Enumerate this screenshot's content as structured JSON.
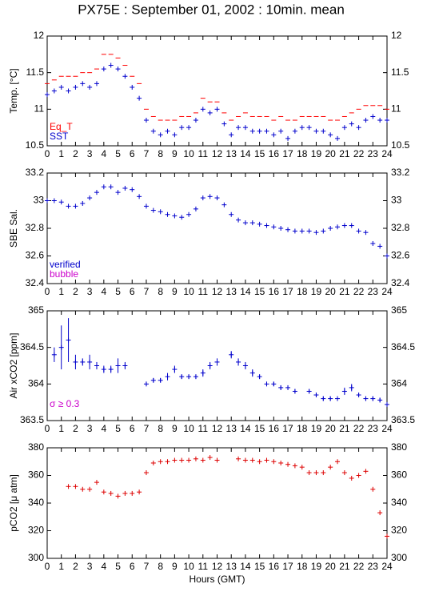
{
  "title": "PX75E : September 01, 2002 : 10min. mean",
  "chart_data": [
    {
      "type": "scatter",
      "ylabel": "Temp. [°C]",
      "xlim": [
        0,
        24
      ],
      "xticks": [
        0,
        1,
        2,
        3,
        4,
        5,
        6,
        7,
        8,
        9,
        10,
        11,
        12,
        13,
        14,
        15,
        16,
        17,
        18,
        19,
        20,
        21,
        22,
        23,
        24
      ],
      "ylim": [
        10.5,
        12
      ],
      "yticks": [
        10.5,
        11,
        11.5,
        12
      ],
      "x": [
        0,
        0.5,
        1,
        1.5,
        2,
        2.5,
        3,
        3.5,
        4,
        4.5,
        5,
        5.5,
        6,
        6.5,
        7,
        7.5,
        8,
        8.5,
        9,
        9.5,
        10,
        10.5,
        11,
        11.5,
        12,
        12.5,
        13,
        13.5,
        14,
        14.5,
        15,
        15.5,
        16,
        16.5,
        17,
        17.5,
        18,
        18.5,
        19,
        19.5,
        20,
        20.5,
        21,
        21.5,
        22,
        22.5,
        23,
        23.5,
        24
      ],
      "series": [
        {
          "name": "Eq_T",
          "color": "#ff0000",
          "marker": "dash",
          "values": [
            11.35,
            11.4,
            11.45,
            11.45,
            11.45,
            11.5,
            11.5,
            11.55,
            11.75,
            11.75,
            11.7,
            11.6,
            11.45,
            11.35,
            11.0,
            10.9,
            10.85,
            10.85,
            10.85,
            10.9,
            10.9,
            10.95,
            11.15,
            11.1,
            11.1,
            10.95,
            10.85,
            10.9,
            10.95,
            10.9,
            10.9,
            10.9,
            10.85,
            10.9,
            10.85,
            10.85,
            10.9,
            10.9,
            10.9,
            10.9,
            10.85,
            10.85,
            10.9,
            10.95,
            11.0,
            11.05,
            11.05,
            11.05,
            11.0
          ]
        },
        {
          "name": "SST",
          "color": "#0000cc",
          "marker": "plus",
          "values": [
            11.2,
            11.25,
            11.3,
            11.25,
            11.3,
            11.35,
            11.3,
            11.35,
            11.55,
            11.6,
            11.55,
            11.45,
            11.3,
            11.15,
            10.85,
            10.7,
            10.65,
            10.7,
            10.65,
            10.75,
            10.75,
            10.85,
            11.0,
            10.95,
            11.0,
            10.8,
            10.65,
            10.75,
            10.75,
            10.7,
            10.7,
            10.7,
            10.65,
            10.7,
            10.6,
            10.7,
            10.75,
            10.75,
            10.7,
            10.7,
            10.65,
            10.6,
            10.75,
            10.8,
            10.75,
            10.85,
            10.9,
            10.85,
            10.85
          ]
        }
      ]
    },
    {
      "type": "scatter",
      "ylabel": "SBE Sal.",
      "xlim": [
        0,
        24
      ],
      "xticks": [
        0,
        1,
        2,
        3,
        4,
        5,
        6,
        7,
        8,
        9,
        10,
        11,
        12,
        13,
        14,
        15,
        16,
        17,
        18,
        19,
        20,
        21,
        22,
        23,
        24
      ],
      "ylim": [
        32.4,
        33.2
      ],
      "yticks": [
        32.4,
        32.6,
        32.8,
        33,
        33.2
      ],
      "x": [
        0,
        0.5,
        1,
        1.5,
        2,
        2.5,
        3,
        3.5,
        4,
        4.5,
        5,
        5.5,
        6,
        6.5,
        7,
        7.5,
        8,
        8.5,
        9,
        9.5,
        10,
        10.5,
        11,
        11.5,
        12,
        12.5,
        13,
        13.5,
        14,
        14.5,
        15,
        15.5,
        16,
        16.5,
        17,
        17.5,
        18,
        18.5,
        19,
        19.5,
        20,
        20.5,
        21,
        21.5,
        22,
        22.5,
        23,
        23.5,
        24
      ],
      "series": [
        {
          "name": "verified",
          "color": "#0000cc",
          "marker": "plus",
          "values": [
            33.0,
            33.0,
            32.99,
            32.96,
            32.96,
            32.98,
            33.02,
            33.06,
            33.1,
            33.1,
            33.06,
            33.09,
            33.08,
            33.03,
            32.96,
            32.93,
            32.92,
            32.9,
            32.89,
            32.88,
            32.9,
            32.94,
            33.02,
            33.03,
            33.02,
            32.97,
            32.9,
            32.86,
            32.84,
            32.84,
            32.83,
            32.82,
            32.81,
            32.8,
            32.79,
            32.78,
            32.78,
            32.78,
            32.77,
            32.78,
            32.8,
            32.81,
            32.82,
            32.82,
            32.78,
            32.77,
            32.69,
            32.67,
            32.6
          ]
        },
        {
          "name": "bubble",
          "color": "#cc00cc",
          "marker": "plus",
          "values": [
            null,
            null,
            null,
            null,
            null,
            null,
            null,
            null,
            null,
            null,
            null,
            null,
            null,
            null,
            null,
            null,
            null,
            null,
            null,
            null,
            null,
            null,
            null,
            null,
            null,
            null,
            null,
            null,
            null,
            null,
            null,
            null,
            null,
            null,
            null,
            null,
            null,
            null,
            null,
            null,
            null,
            null,
            null,
            null,
            null,
            null,
            null,
            null,
            null
          ]
        }
      ]
    },
    {
      "type": "scatter",
      "ylabel": "Air xCO2 [ppm]",
      "annotation": {
        "text": "σ ≥ 0.3",
        "color": "#cc00cc"
      },
      "xlim": [
        0,
        24
      ],
      "xticks": [
        0,
        1,
        2,
        3,
        4,
        5,
        6,
        7,
        8,
        9,
        10,
        11,
        12,
        13,
        14,
        15,
        16,
        17,
        18,
        19,
        20,
        21,
        22,
        23,
        24
      ],
      "ylim": [
        363.5,
        365
      ],
      "yticks": [
        363.5,
        364,
        364.5,
        365
      ],
      "x": [
        0,
        0.5,
        1,
        1.5,
        2,
        2.5,
        3,
        3.5,
        4,
        4.5,
        5,
        5.5,
        6,
        6.5,
        7,
        7.5,
        8,
        8.5,
        9,
        9.5,
        10,
        10.5,
        11,
        11.5,
        12,
        12.5,
        13,
        13.5,
        14,
        14.5,
        15,
        15.5,
        16,
        16.5,
        17,
        17.5,
        18,
        18.5,
        19,
        19.5,
        20,
        20.5,
        21,
        21.5,
        22,
        22.5,
        23,
        23.5,
        24
      ],
      "series": [
        {
          "color": "#0000cc",
          "marker": "plus",
          "values": [
            null,
            364.4,
            364.5,
            364.6,
            364.3,
            364.3,
            364.3,
            364.25,
            364.2,
            364.2,
            364.25,
            364.25,
            null,
            null,
            364.0,
            364.05,
            364.05,
            364.1,
            364.2,
            364.1,
            364.1,
            364.1,
            364.15,
            364.25,
            364.3,
            null,
            364.4,
            364.3,
            364.25,
            364.15,
            364.1,
            364.0,
            364.0,
            363.95,
            363.95,
            363.9,
            null,
            363.9,
            363.85,
            363.8,
            363.8,
            363.8,
            363.9,
            363.95,
            363.85,
            363.8,
            363.8,
            363.78,
            363.72
          ],
          "errors": [
            null,
            0.1,
            0.3,
            0.3,
            0.1,
            0.05,
            0.1,
            0.05,
            0.05,
            0.05,
            0.1,
            0.05,
            null,
            null,
            0.03,
            0.03,
            0.03,
            0.05,
            0.05,
            0.03,
            0.03,
            0.03,
            0.05,
            0.05,
            0.05,
            null,
            0.05,
            0.05,
            0.05,
            0.05,
            0.03,
            0.03,
            0.03,
            0.03,
            0.03,
            0.03,
            null,
            0.03,
            0.03,
            0.03,
            0.03,
            0.03,
            0.05,
            0.05,
            0.03,
            0.03,
            0.03,
            0.03,
            0.03
          ]
        }
      ]
    },
    {
      "type": "scatter",
      "ylabel": "pCO2 [μ atm]",
      "xlabel": "Hours (GMT)",
      "xlim": [
        0,
        24
      ],
      "xticks": [
        0,
        1,
        2,
        3,
        4,
        5,
        6,
        7,
        8,
        9,
        10,
        11,
        12,
        13,
        14,
        15,
        16,
        17,
        18,
        19,
        20,
        21,
        22,
        23,
        24
      ],
      "ylim": [
        300,
        380
      ],
      "yticks": [
        300,
        320,
        340,
        360,
        380
      ],
      "x": [
        0,
        0.5,
        1,
        1.5,
        2,
        2.5,
        3,
        3.5,
        4,
        4.5,
        5,
        5.5,
        6,
        6.5,
        7,
        7.5,
        8,
        8.5,
        9,
        9.5,
        10,
        10.5,
        11,
        11.5,
        12,
        12.5,
        13,
        13.5,
        14,
        14.5,
        15,
        15.5,
        16,
        16.5,
        17,
        17.5,
        18,
        18.5,
        19,
        19.5,
        20,
        20.5,
        21,
        21.5,
        22,
        22.5,
        23,
        23.5,
        24
      ],
      "series": [
        {
          "color": "#dd0000",
          "marker": "plus",
          "values": [
            null,
            null,
            null,
            352,
            352,
            350,
            350,
            355,
            348,
            347,
            345,
            347,
            347,
            348,
            362,
            369,
            370,
            370,
            371,
            371,
            371,
            372,
            371,
            373,
            371,
            null,
            null,
            372,
            371,
            371,
            370,
            371,
            370,
            369,
            368,
            367,
            366,
            362,
            362,
            362,
            366,
            370,
            362,
            358,
            360,
            363,
            350,
            333,
            316
          ]
        }
      ]
    }
  ]
}
